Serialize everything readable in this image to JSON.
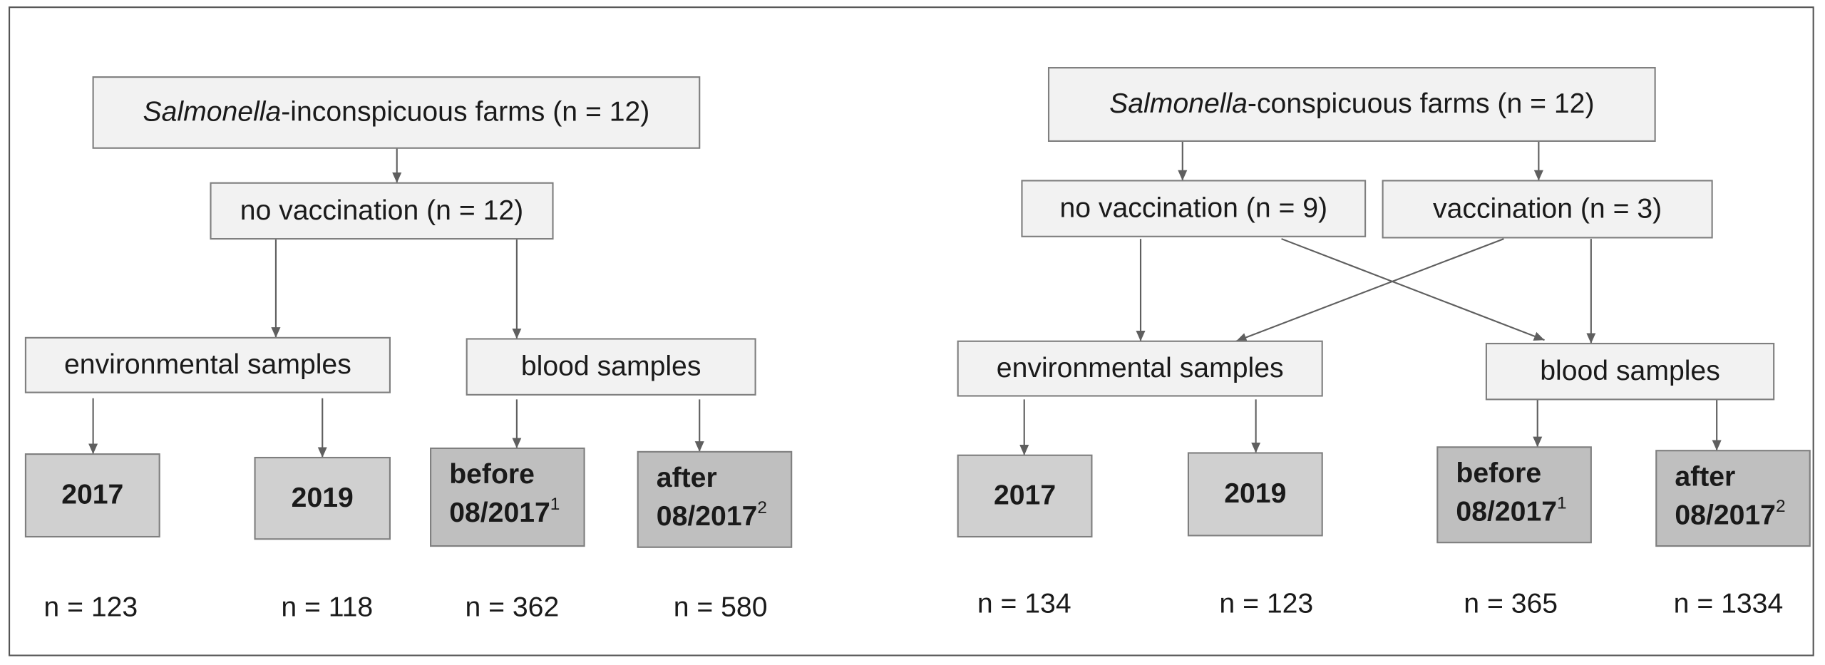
{
  "left": {
    "root": {
      "italic": "Salmonella",
      "rest": "-inconspicuous farms (n = 12)"
    },
    "vaccination": [
      "no vaccination (n = 12)"
    ],
    "sample_types": [
      "environmental samples",
      "blood samples"
    ],
    "groups": [
      {
        "lines": [
          "2017"
        ]
      },
      {
        "lines": [
          "2019"
        ]
      },
      {
        "lines": [
          "before",
          "08/2017"
        ],
        "note": "1"
      },
      {
        "lines": [
          "after",
          "08/2017"
        ],
        "note": "2"
      }
    ],
    "counts": [
      "n = 123",
      "n = 118",
      "n = 362",
      "n = 580"
    ]
  },
  "right": {
    "root": {
      "italic": "Salmonella",
      "rest": "-conspicuous farms (n = 12)"
    },
    "vaccination": [
      "no vaccination (n = 9)",
      "vaccination (n = 3)"
    ],
    "sample_types": [
      "environmental samples",
      "blood samples"
    ],
    "groups": [
      {
        "lines": [
          "2017"
        ]
      },
      {
        "lines": [
          "2019"
        ]
      },
      {
        "lines": [
          "before",
          "08/2017"
        ],
        "note": "1"
      },
      {
        "lines": [
          "after",
          "08/2017"
        ],
        "note": "2"
      }
    ],
    "counts": [
      "n = 134",
      "n = 123",
      "n = 365",
      "n = 1334"
    ]
  }
}
